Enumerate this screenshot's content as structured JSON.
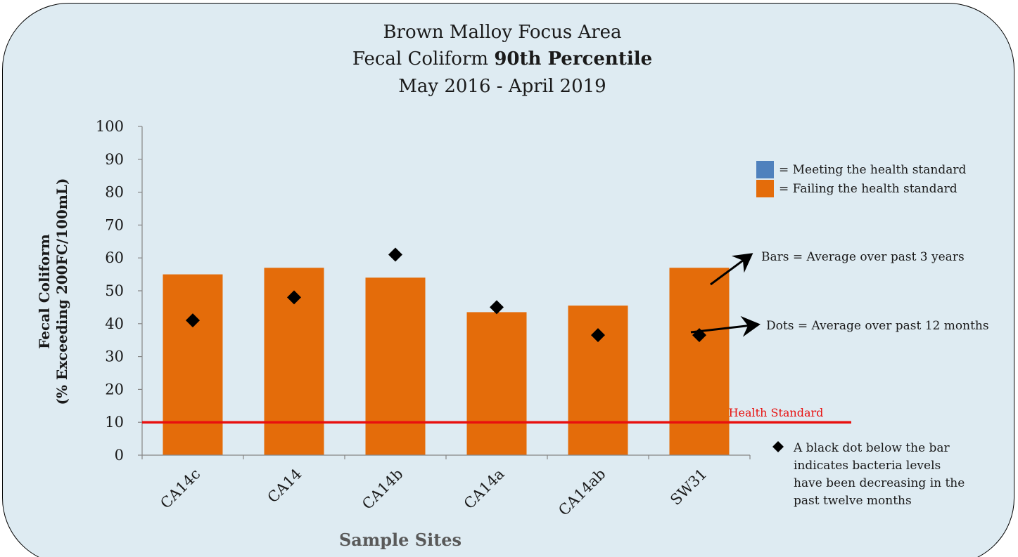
{
  "chart_data": {
    "type": "bar",
    "title_lines": [
      "Brown Malloy Focus Area",
      "Fecal Coliform ",
      "90th Percentile",
      "May 2016 - April 2019"
    ],
    "xlabel": "Sample Sites",
    "ylabel_lines": [
      "Fecal Coliform",
      "(% Exceeding 200FC/100mL)"
    ],
    "ylim": [
      0,
      100
    ],
    "yticks": [
      "0",
      "10",
      "20",
      "30",
      "40",
      "50",
      "60",
      "70",
      "80",
      "90",
      "100"
    ],
    "categories": [
      "CA14c",
      "CA14",
      "CA14b",
      "CA14a",
      "CA14ab",
      "SW31"
    ],
    "series": [
      {
        "name": "Bars = Average over past 3 years",
        "values": [
          55,
          57,
          54,
          43.5,
          45.5,
          57
        ]
      },
      {
        "name": "Dots = Average over past 12 months",
        "values": [
          41,
          48,
          61,
          45,
          36.5,
          36.5
        ]
      }
    ],
    "bar_color": "#e46c0a",
    "dot_color": "#000000",
    "health_standard": {
      "label": "Health Standard",
      "value": 10,
      "color": "#e8100f"
    },
    "legend": {
      "position": "right",
      "items": [
        {
          "label": "= Meeting the health standard",
          "color": "#4f81bd"
        },
        {
          "label": "= Failing the health standard",
          "color": "#e46c0a"
        }
      ]
    },
    "annotation_lines": [
      "A black dot below  the bar",
      "indicates bacteria levels",
      "have been decreasing in the",
      "past twelve months"
    ],
    "grid": false
  }
}
